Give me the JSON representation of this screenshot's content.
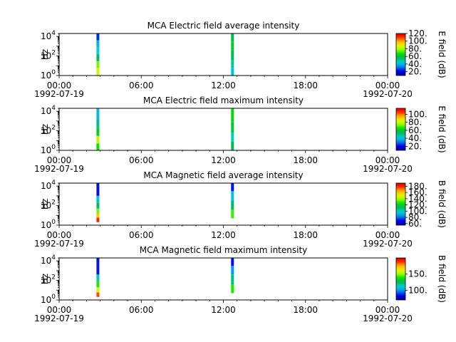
{
  "figure": {
    "instrument": "MCA"
  },
  "chart_data": [
    {
      "type": "heatmap",
      "title": "MCA  Electric field average intensity",
      "xlabel": "",
      "ylabel": "Hz",
      "y_scale": "log",
      "ylim": [
        1,
        20000
      ],
      "yticks": [
        {
          "value": 1,
          "base": "10",
          "exp": "0"
        },
        {
          "value": 100,
          "base": "10",
          "exp": "2"
        },
        {
          "value": 10000,
          "base": "10",
          "exp": "4"
        }
      ],
      "xlim": [
        "1992-07-19 00:00",
        "1992-07-20 00:00"
      ],
      "xticks": [
        {
          "value": "1992-07-19 00:00",
          "time": "00:00",
          "date": "1992-07-19"
        },
        {
          "value": "1992-07-19 06:00",
          "time": "06:00",
          "date": ""
        },
        {
          "value": "1992-07-19 12:00",
          "time": "12:00",
          "date": ""
        },
        {
          "value": "1992-07-19 18:00",
          "time": "18:00",
          "date": ""
        },
        {
          "value": "1992-07-20 00:00",
          "time": "00:00",
          "date": "1992-07-20"
        }
      ],
      "colorbar": {
        "label": "E field (dB)",
        "range": [
          10,
          120
        ],
        "ticks": [
          "20.",
          "40.",
          "60.",
          "80.",
          "100.",
          "120."
        ]
      },
      "colormap": "nipy_spectral",
      "series": [
        {
          "time": "1992-07-19 02:50",
          "freq_min": 1.0,
          "freq_max": 20000,
          "bands": [
            {
              "f0": 1.0,
              "f1": 6,
              "value": 85
            },
            {
              "f0": 6,
              "f1": 30,
              "value": 75
            },
            {
              "f0": 30,
              "f1": 150,
              "value": 55
            },
            {
              "f0": 150,
              "f1": 800,
              "value": 45
            },
            {
              "f0": 800,
              "f1": 4000,
              "value": 40
            },
            {
              "f0": 4000,
              "f1": 20000,
              "value": 25
            }
          ]
        },
        {
          "time": "1992-07-19 12:40",
          "freq_min": 1.0,
          "freq_max": 20000,
          "bands": [
            {
              "f0": 1.0,
              "f1": 6,
              "value": 42
            },
            {
              "f0": 6,
              "f1": 40,
              "value": 50
            },
            {
              "f0": 40,
              "f1": 400,
              "value": 58
            },
            {
              "f0": 400,
              "f1": 3000,
              "value": 62
            },
            {
              "f0": 3000,
              "f1": 20000,
              "value": 58
            }
          ]
        }
      ]
    },
    {
      "type": "heatmap",
      "title": "MCA  Electric field maximum intensity",
      "xlabel": "",
      "ylabel": "Hz",
      "y_scale": "log",
      "ylim": [
        1,
        20000
      ],
      "yticks": [
        {
          "value": 1,
          "base": "10",
          "exp": "0"
        },
        {
          "value": 100,
          "base": "10",
          "exp": "2"
        },
        {
          "value": 10000,
          "base": "10",
          "exp": "4"
        }
      ],
      "xlim": [
        "1992-07-19 00:00",
        "1992-07-20 00:00"
      ],
      "xticks": [
        {
          "value": "1992-07-19 00:00",
          "time": "00:00",
          "date": "1992-07-19"
        },
        {
          "value": "1992-07-19 06:00",
          "time": "06:00",
          "date": ""
        },
        {
          "value": "1992-07-19 12:00",
          "time": "12:00",
          "date": ""
        },
        {
          "value": "1992-07-19 18:00",
          "time": "18:00",
          "date": ""
        },
        {
          "value": "1992-07-20 00:00",
          "time": "00:00",
          "date": "1992-07-20"
        }
      ],
      "colorbar": {
        "label": "E field (dB)",
        "range": [
          10,
          115
        ],
        "ticks": [
          "20.",
          "40.",
          "60.",
          "80.",
          "100."
        ]
      },
      "colormap": "nipy_spectral",
      "series": [
        {
          "time": "1992-07-19 02:50",
          "freq_min": 1.0,
          "freq_max": 20000,
          "bands": [
            {
              "f0": 1.0,
              "f1": 5,
              "value": 65
            },
            {
              "f0": 5,
              "f1": 30,
              "value": 80
            },
            {
              "f0": 30,
              "f1": 200,
              "value": 60
            },
            {
              "f0": 200,
              "f1": 1500,
              "value": 50
            },
            {
              "f0": 1500,
              "f1": 20000,
              "value": 40
            }
          ]
        },
        {
          "time": "1992-07-19 12:40",
          "freq_min": 1.0,
          "freq_max": 20000,
          "bands": [
            {
              "f0": 1.0,
              "f1": 8,
              "value": 55
            },
            {
              "f0": 8,
              "f1": 60,
              "value": 45
            },
            {
              "f0": 60,
              "f1": 800,
              "value": 58
            },
            {
              "f0": 800,
              "f1": 20000,
              "value": 62
            }
          ]
        }
      ]
    },
    {
      "type": "heatmap",
      "title": "MCA  Magnetic field average intensity",
      "xlabel": "",
      "ylabel": "Hz",
      "y_scale": "log",
      "ylim": [
        1,
        20000
      ],
      "yticks": [
        {
          "value": 1,
          "base": "10",
          "exp": "0"
        },
        {
          "value": 100,
          "base": "10",
          "exp": "2"
        },
        {
          "value": 10000,
          "base": "10",
          "exp": "4"
        }
      ],
      "xlim": [
        "1992-07-19 00:00",
        "1992-07-20 00:00"
      ],
      "xticks": [
        {
          "value": "1992-07-19 00:00",
          "time": "00:00",
          "date": "1992-07-19"
        },
        {
          "value": "1992-07-19 06:00",
          "time": "06:00",
          "date": ""
        },
        {
          "value": "1992-07-19 12:00",
          "time": "12:00",
          "date": ""
        },
        {
          "value": "1992-07-19 18:00",
          "time": "18:00",
          "date": ""
        },
        {
          "value": "1992-07-20 00:00",
          "time": "00:00",
          "date": "1992-07-20"
        }
      ],
      "colorbar": {
        "label": "B field (dB)",
        "range": [
          55,
          190
        ],
        "ticks": [
          "60.",
          "80.",
          "100.",
          "120.",
          "140.",
          "160.",
          "180."
        ]
      },
      "colormap": "nipy_spectral",
      "series": [
        {
          "time": "1992-07-19 02:50",
          "freq_min": 2.0,
          "freq_max": 20000,
          "bands": [
            {
              "f0": 2.0,
              "f1": 6,
              "value": 178
            },
            {
              "f0": 6,
              "f1": 15,
              "value": 160
            },
            {
              "f0": 15,
              "f1": 50,
              "value": 135
            },
            {
              "f0": 50,
              "f1": 200,
              "value": 110
            },
            {
              "f0": 200,
              "f1": 1000,
              "value": 95
            },
            {
              "f0": 1000,
              "f1": 20000,
              "value": 70
            }
          ]
        },
        {
          "time": "1992-07-19 12:40",
          "freq_min": 5.0,
          "freq_max": 20000,
          "bands": [
            {
              "f0": 5.0,
              "f1": 40,
              "value": 130
            },
            {
              "f0": 40,
              "f1": 300,
              "value": 110
            },
            {
              "f0": 300,
              "f1": 3000,
              "value": 95
            },
            {
              "f0": 3000,
              "f1": 20000,
              "value": 70
            }
          ]
        }
      ]
    },
    {
      "type": "heatmap",
      "title": "MCA  Magnetic field maximum intensity",
      "xlabel": "",
      "ylabel": "Hz",
      "y_scale": "log",
      "ylim": [
        1,
        20000
      ],
      "yticks": [
        {
          "value": 1,
          "base": "10",
          "exp": "0"
        },
        {
          "value": 100,
          "base": "10",
          "exp": "2"
        },
        {
          "value": 10000,
          "base": "10",
          "exp": "4"
        }
      ],
      "xlim": [
        "1992-07-19 00:00",
        "1992-07-20 00:00"
      ],
      "xticks": [
        {
          "value": "1992-07-19 00:00",
          "time": "00:00",
          "date": "1992-07-19"
        },
        {
          "value": "1992-07-19 06:00",
          "time": "06:00",
          "date": ""
        },
        {
          "value": "1992-07-19 12:00",
          "time": "12:00",
          "date": ""
        },
        {
          "value": "1992-07-19 18:00",
          "time": "18:00",
          "date": ""
        },
        {
          "value": "1992-07-20 00:00",
          "time": "00:00",
          "date": "1992-07-20"
        }
      ],
      "colorbar": {
        "label": "B field (dB)",
        "range": [
          70,
          200
        ],
        "ticks": [
          "100.",
          "150."
        ]
      },
      "colormap": "nipy_spectral",
      "series": [
        {
          "time": "1992-07-19 02:50",
          "freq_min": 2.0,
          "freq_max": 20000,
          "bands": [
            {
              "f0": 2.0,
              "f1": 6,
              "value": 185
            },
            {
              "f0": 6,
              "f1": 20,
              "value": 160
            },
            {
              "f0": 20,
              "f1": 80,
              "value": 140
            },
            {
              "f0": 80,
              "f1": 400,
              "value": 115
            },
            {
              "f0": 400,
              "f1": 20000,
              "value": 85
            }
          ]
        },
        {
          "time": "1992-07-19 12:40",
          "freq_min": 5.0,
          "freq_max": 20000,
          "bands": [
            {
              "f0": 5.0,
              "f1": 40,
              "value": 140
            },
            {
              "f0": 40,
              "f1": 400,
              "value": 120
            },
            {
              "f0": 400,
              "f1": 3000,
              "value": 100
            },
            {
              "f0": 3000,
              "f1": 20000,
              "value": 85
            }
          ]
        }
      ]
    }
  ]
}
